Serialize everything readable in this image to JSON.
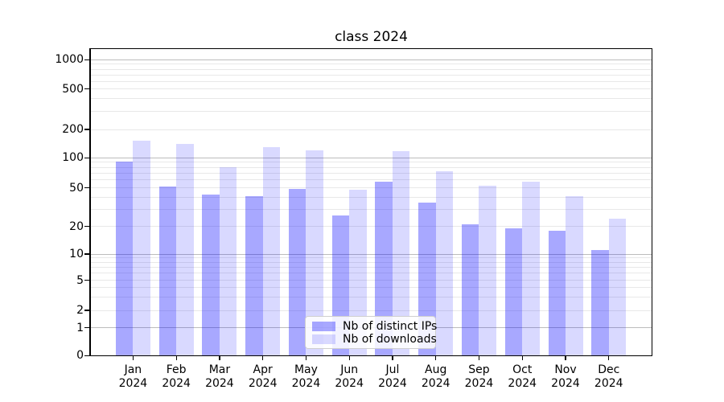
{
  "title": "class 2024",
  "chart_data": {
    "type": "bar",
    "x": {
      "months": [
        "Jan",
        "Feb",
        "Mar",
        "Apr",
        "May",
        "Jun",
        "Jul",
        "Aug",
        "Sep",
        "Oct",
        "Nov",
        "Dec"
      ],
      "year": "2024"
    },
    "y_axis": {
      "scale": "symlog",
      "tick_values": [
        0,
        1,
        2,
        5,
        10,
        20,
        50,
        100,
        200,
        500,
        1000
      ],
      "tick_labels": [
        "0",
        "1",
        "2",
        "5",
        "10",
        "20",
        "50",
        "100",
        "200",
        "500",
        "1000"
      ],
      "ylim": [
        0,
        1300
      ],
      "grid": "on"
    },
    "series": [
      {
        "name": "Nb of distinct IPs",
        "color": "rgba(0,0,255,0.34)",
        "values": [
          91,
          52,
          43,
          41,
          49,
          26,
          58,
          35,
          21,
          19,
          18,
          11
        ]
      },
      {
        "name": "Nb of downloads",
        "color": "rgba(0,0,255,0.15)",
        "values": [
          151,
          140,
          80,
          131,
          120,
          48,
          117,
          74,
          53,
          58,
          41,
          24
        ]
      }
    ],
    "legend_position": "lower center"
  },
  "colors": {
    "major_grid": "#bcbcbc",
    "minor_grid": "#e8e8e8",
    "spine": "#000000",
    "background": "#ffffff"
  }
}
